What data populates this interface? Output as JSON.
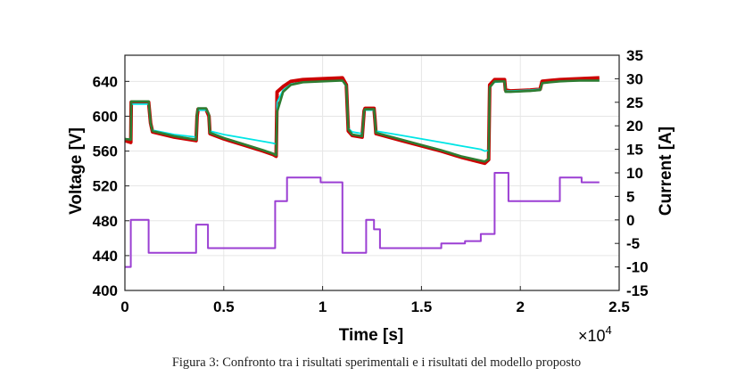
{
  "chart_data": {
    "type": "line",
    "title": "",
    "xlabel": "Time [s]",
    "ylabel_left": "Voltage [V]",
    "ylabel_right": "Current [A]",
    "x_exponent_label": "×10",
    "x_exponent_power": "4",
    "xlim": [
      0,
      25000
    ],
    "ylim_left": [
      400,
      670
    ],
    "ylim_right": [
      -15,
      35
    ],
    "x_ticks": [
      "0",
      "0.5",
      "1",
      "1.5",
      "2",
      "2.5"
    ],
    "x_tick_values": [
      0,
      5000,
      10000,
      15000,
      20000,
      25000
    ],
    "y_left_ticks": [
      "400",
      "440",
      "480",
      "520",
      "560",
      "600",
      "640"
    ],
    "y_left_tick_values": [
      400,
      440,
      480,
      520,
      560,
      600,
      640
    ],
    "y_right_ticks": [
      "-15",
      "-10",
      "-5",
      "0",
      "5",
      "10",
      "15",
      "20",
      "25",
      "30",
      "35"
    ],
    "y_right_tick_values": [
      -15,
      -10,
      -5,
      0,
      5,
      10,
      15,
      20,
      25,
      30,
      35
    ],
    "grid": true,
    "legend": "none",
    "series": [
      {
        "axis": "left",
        "color": "#cc0000",
        "x": [
          0,
          300,
          320,
          1200,
          1300,
          1400,
          2500,
          3600,
          3650,
          3700,
          4100,
          4250,
          4300,
          5000,
          6000,
          7000,
          7500,
          7650,
          7700,
          8000,
          8400,
          9000,
          10000,
          11000,
          11200,
          11300,
          11500,
          12000,
          12100,
          12150,
          12600,
          12650,
          12700,
          14000,
          15000,
          16000,
          17000,
          18200,
          18400,
          18450,
          18700,
          19200,
          19250,
          19500,
          20500,
          21000,
          21100,
          21500,
          22000,
          23000,
          24000
        ],
        "values": [
          572,
          570,
          616,
          616,
          592,
          582,
          576,
          572,
          600,
          608,
          608,
          600,
          580,
          574,
          567,
          560,
          556,
          554,
          628,
          634,
          640,
          642,
          643,
          644,
          636,
          583,
          578,
          576,
          606,
          609,
          609,
          596,
          580,
          572,
          566,
          560,
          553,
          546,
          550,
          636,
          642,
          642,
          630,
          629,
          630,
          631,
          640,
          641,
          642,
          643,
          644
        ]
      },
      {
        "axis": "left",
        "color": "#00e5e5",
        "x": [
          0,
          300,
          320,
          1200,
          1300,
          1400,
          2500,
          3600,
          3650,
          3700,
          4100,
          4250,
          4300,
          5000,
          6000,
          7000,
          7500,
          7650,
          7700,
          8000,
          8400,
          9000,
          10000,
          11000,
          11200,
          11300,
          11500,
          12000,
          12100,
          12150,
          12600,
          12650,
          12700,
          14000,
          15000,
          16000,
          17000,
          18000,
          18200,
          18400,
          18450,
          18700,
          19200,
          19250,
          19500,
          20500,
          21000,
          21100,
          21500,
          22000,
          23000,
          24000
        ],
        "values": [
          574,
          574,
          614,
          614,
          590,
          584,
          579,
          576,
          604,
          607,
          607,
          602,
          583,
          579,
          575,
          571,
          569,
          568,
          616,
          630,
          637,
          639,
          640,
          641,
          634,
          586,
          582,
          580,
          606,
          607,
          607,
          596,
          583,
          578,
          574,
          570,
          566,
          562,
          560,
          561,
          634,
          639,
          640,
          629,
          629,
          630,
          631,
          638,
          639,
          640,
          641,
          641
        ]
      },
      {
        "axis": "left",
        "color": "#2e7d32",
        "x": [
          0,
          300,
          320,
          1200,
          1300,
          1400,
          2500,
          3600,
          3650,
          3700,
          4100,
          4250,
          4300,
          5000,
          6000,
          7000,
          7500,
          7650,
          7700,
          8000,
          8400,
          9000,
          10000,
          11000,
          11200,
          11300,
          11500,
          12000,
          12100,
          12150,
          12600,
          12650,
          12700,
          14000,
          15000,
          16000,
          17000,
          18200,
          18400,
          18450,
          18700,
          19200,
          19250,
          19500,
          20500,
          21000,
          21100,
          21500,
          22000,
          23000,
          24000
        ],
        "values": [
          574,
          573,
          617,
          617,
          592,
          583,
          577,
          573,
          604,
          609,
          609,
          602,
          581,
          575,
          568,
          561,
          557,
          555,
          605,
          628,
          636,
          639,
          640,
          641,
          635,
          585,
          579,
          577,
          606,
          608,
          608,
          596,
          581,
          573,
          567,
          561,
          554,
          548,
          551,
          633,
          640,
          640,
          628,
          628,
          629,
          630,
          638,
          639,
          640,
          641,
          641
        ]
      },
      {
        "axis": "right",
        "color": "#9b3fd3",
        "x": [
          0,
          300,
          300,
          1200,
          1200,
          3600,
          3600,
          4200,
          4200,
          7600,
          7600,
          8200,
          8200,
          9900,
          9900,
          11000,
          11000,
          12200,
          12200,
          12600,
          12600,
          12900,
          12900,
          16000,
          16000,
          17200,
          17200,
          18000,
          18000,
          18700,
          18700,
          19400,
          19400,
          20800,
          20800,
          22000,
          22000,
          23100,
          23100,
          24000
        ],
        "values": [
          -10,
          -10,
          0,
          0,
          -7,
          -7,
          -1,
          -1,
          -6,
          -6,
          4,
          4,
          9,
          9,
          8,
          8,
          -7,
          -7,
          0,
          0,
          -2,
          -2,
          -6,
          -6,
          -5,
          -5,
          -4.5,
          -4.5,
          -3,
          -3,
          10,
          10,
          4,
          4,
          4,
          4,
          9,
          9,
          8,
          8
        ]
      }
    ]
  },
  "caption": "Figura 3: Confronto tra i risultati sperimentali e i risultati del modello proposto"
}
